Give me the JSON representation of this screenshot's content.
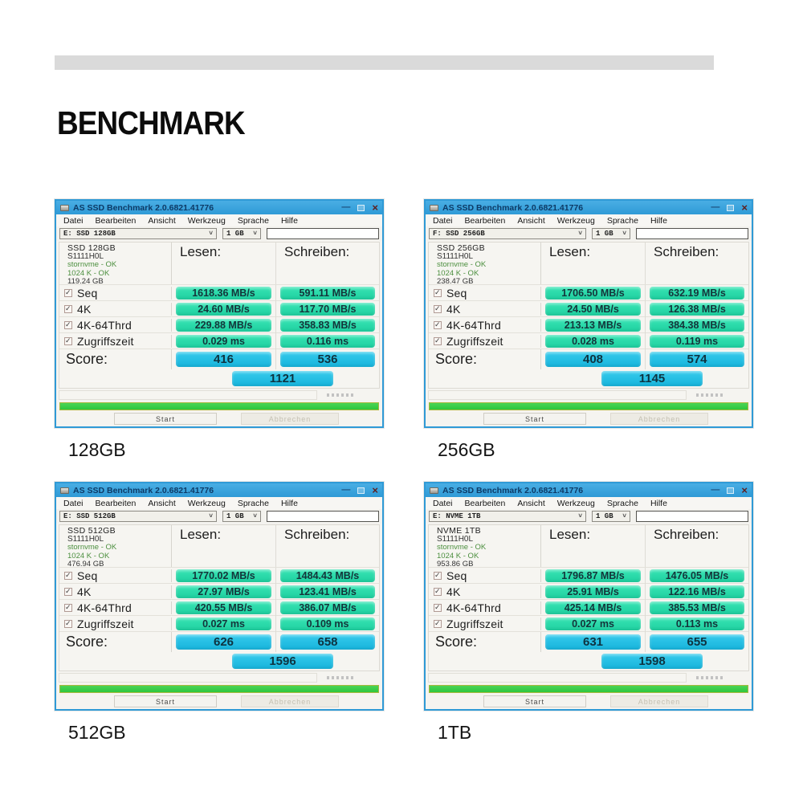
{
  "page": {
    "heading": "BENCHMARK"
  },
  "colors": {
    "titlebar_blue": "#2f9ad6",
    "title_text": "#0d3a66",
    "badge_green": "#38e4b4",
    "badge_green_dark": "#1fd0a0",
    "badge_cyan": "#36cbec",
    "badge_cyan_dark": "#17b4dc",
    "progress_green": "#2ec63e",
    "ok_green": "#4c8f3f"
  },
  "windows": [
    {
      "title": "AS SSD Benchmark 2.0.6821.41776",
      "menu": [
        "Datei",
        "Bearbeiten",
        "Ansicht",
        "Werkzeug",
        "Sprache",
        "Hilfe"
      ],
      "drive_select": "E: SSD 128GB",
      "size_select": "1 GB",
      "info": {
        "name": "SSD 128GB",
        "serial": "S1111H0L",
        "driver": "stornvme - OK",
        "alignment": "1024 K - OK",
        "capacity": "119.24 GB"
      },
      "read_header": "Lesen:",
      "write_header": "Schreiben:",
      "rows": [
        {
          "label": "Seq",
          "read": "1618.36 MB/s",
          "write": "591.11 MB/s"
        },
        {
          "label": "4K",
          "read": "24.60 MB/s",
          "write": "117.70 MB/s"
        },
        {
          "label": "4K-64Thrd",
          "read": "229.88 MB/s",
          "write": "358.83 MB/s"
        },
        {
          "label": "Zugriffszeit",
          "read": "0.029 ms",
          "write": "0.116 ms"
        }
      ],
      "score_label": "Score:",
      "score_read": "416",
      "score_write": "536",
      "score_total": "1121",
      "start_button": "Start",
      "abort_button": "Abbrechen",
      "caption": "128GB"
    },
    {
      "title": "AS SSD Benchmark 2.0.6821.41776",
      "menu": [
        "Datei",
        "Bearbeiten",
        "Ansicht",
        "Werkzeug",
        "Sprache",
        "Hilfe"
      ],
      "drive_select": "F: SSD 256GB",
      "size_select": "1 GB",
      "info": {
        "name": "SSD 256GB",
        "serial": "S1111H0L",
        "driver": "stornvme - OK",
        "alignment": "1024 K - OK",
        "capacity": "238.47 GB"
      },
      "read_header": "Lesen:",
      "write_header": "Schreiben:",
      "rows": [
        {
          "label": "Seq",
          "read": "1706.50 MB/s",
          "write": "632.19 MB/s"
        },
        {
          "label": "4K",
          "read": "24.50 MB/s",
          "write": "126.38 MB/s"
        },
        {
          "label": "4K-64Thrd",
          "read": "213.13 MB/s",
          "write": "384.38 MB/s"
        },
        {
          "label": "Zugriffszeit",
          "read": "0.028 ms",
          "write": "0.119 ms"
        }
      ],
      "score_label": "Score:",
      "score_read": "408",
      "score_write": "574",
      "score_total": "1145",
      "start_button": "Start",
      "abort_button": "Abbrechen",
      "caption": "256GB"
    },
    {
      "title": "AS SSD Benchmark 2.0.6821.41776",
      "menu": [
        "Datei",
        "Bearbeiten",
        "Ansicht",
        "Werkzeug",
        "Sprache",
        "Hilfe"
      ],
      "drive_select": "E: SSD 512GB",
      "size_select": "1 GB",
      "info": {
        "name": "SSD 512GB",
        "serial": "S1111H0L",
        "driver": "stornvme - OK",
        "alignment": "1024 K - OK",
        "capacity": "476.94 GB"
      },
      "read_header": "Lesen:",
      "write_header": "Schreiben:",
      "rows": [
        {
          "label": "Seq",
          "read": "1770.02 MB/s",
          "write": "1484.43 MB/s"
        },
        {
          "label": "4K",
          "read": "27.97 MB/s",
          "write": "123.41 MB/s"
        },
        {
          "label": "4K-64Thrd",
          "read": "420.55 MB/s",
          "write": "386.07 MB/s"
        },
        {
          "label": "Zugriffszeit",
          "read": "0.027 ms",
          "write": "0.109 ms"
        }
      ],
      "score_label": "Score:",
      "score_read": "626",
      "score_write": "658",
      "score_total": "1596",
      "start_button": "Start",
      "abort_button": "Abbrechen",
      "caption": "512GB"
    },
    {
      "title": "AS SSD Benchmark 2.0.6821.41776",
      "menu": [
        "Datei",
        "Bearbeiten",
        "Ansicht",
        "Werkzeug",
        "Sprache",
        "Hilfe"
      ],
      "drive_select": "E: NVME 1TB",
      "size_select": "1 GB",
      "info": {
        "name": "NVME 1TB",
        "serial": "S1111H0L",
        "driver": "stornvme - OK",
        "alignment": "1024 K - OK",
        "capacity": "953.86 GB"
      },
      "read_header": "Lesen:",
      "write_header": "Schreiben:",
      "rows": [
        {
          "label": "Seq",
          "read": "1796.87 MB/s",
          "write": "1476.05 MB/s"
        },
        {
          "label": "4K",
          "read": "25.91 MB/s",
          "write": "122.16 MB/s"
        },
        {
          "label": "4K-64Thrd",
          "read": "425.14 MB/s",
          "write": "385.53 MB/s"
        },
        {
          "label": "Zugriffszeit",
          "read": "0.027 ms",
          "write": "0.113 ms"
        }
      ],
      "score_label": "Score:",
      "score_read": "631",
      "score_write": "655",
      "score_total": "1598",
      "start_button": "Start",
      "abort_button": "Abbrechen",
      "caption": "1TB"
    }
  ]
}
